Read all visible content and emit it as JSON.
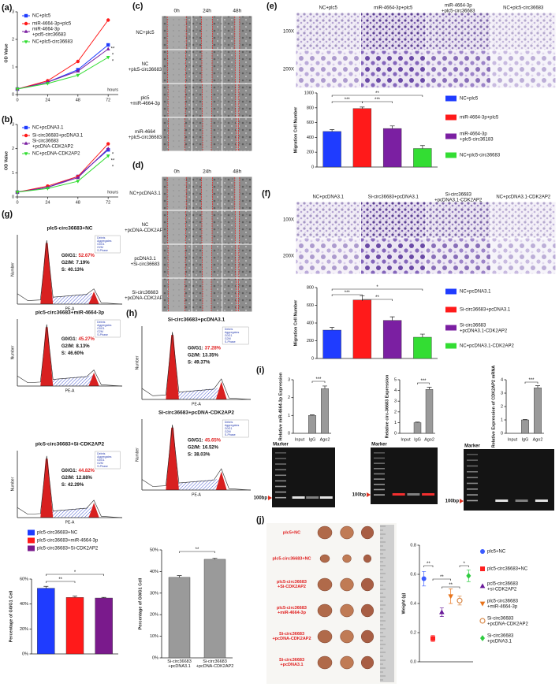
{
  "panel_labels": [
    "(a)",
    "(b)",
    "(c)",
    "(d)",
    "(e)",
    "(f)",
    "(g)",
    "(h)",
    "(i)",
    "(j)"
  ],
  "chart_data": [
    {
      "type": "line",
      "ylabel": "OD Value",
      "xlabel": "hours",
      "x": [
        0,
        24,
        48,
        72
      ],
      "xlim": [
        0,
        80
      ],
      "xticks": [
        0,
        24,
        48,
        72
      ],
      "ylim": [
        0,
        3
      ],
      "yticks": [
        0,
        1,
        2,
        3
      ],
      "series": [
        {
          "name": "NC+plc5",
          "color": "#1f3cff",
          "marker": "square",
          "values": [
            0.2,
            0.45,
            0.9,
            1.8
          ]
        },
        {
          "name": "miR-4664-3p+plc5",
          "color": "#ff1a1a",
          "marker": "circle",
          "values": [
            0.2,
            0.5,
            1.2,
            2.7
          ]
        },
        {
          "name": "miR-4664-3p\n+pcl5-circ36683",
          "color": "#7b1fa2",
          "marker": "triangle",
          "values": [
            0.2,
            0.45,
            0.85,
            1.65
          ]
        },
        {
          "name": "NC+plc5-circ36683",
          "color": "#33dd33",
          "marker": "triangle-down",
          "values": [
            0.2,
            0.4,
            0.7,
            1.35
          ]
        }
      ],
      "annotations": [
        "**",
        "*",
        "*"
      ]
    },
    {
      "type": "line",
      "ylabel": "OD Value",
      "xlabel": "hours",
      "x": [
        0,
        24,
        48,
        72
      ],
      "xlim": [
        0,
        80
      ],
      "xticks": [
        0,
        24,
        48,
        72
      ],
      "ylim": [
        0,
        3
      ],
      "yticks": [
        0,
        1,
        2,
        3
      ],
      "series": [
        {
          "name": "NC+pcDNA3.1",
          "color": "#1f3cff",
          "marker": "square",
          "values": [
            0.2,
            0.4,
            0.85,
            1.95
          ]
        },
        {
          "name": "Si-circ36683+pcDNA3.1",
          "color": "#ff1a1a",
          "marker": "circle",
          "values": [
            0.2,
            0.45,
            0.85,
            2.2
          ]
        },
        {
          "name": "Si-circ36683\n+pcDNA-CDK2AP2",
          "color": "#7b1fa2",
          "marker": "triangle",
          "values": [
            0.2,
            0.4,
            0.8,
            2.0
          ]
        },
        {
          "name": "NC+pcDNA-CDK2AP2",
          "color": "#33dd33",
          "marker": "triangle-down",
          "values": [
            0.2,
            0.35,
            0.65,
            1.7
          ]
        }
      ],
      "annotations": [
        "*",
        "**",
        "*"
      ]
    },
    {
      "type": "bar",
      "ylabel": "Migration Cell Number",
      "ylim": [
        0,
        1000
      ],
      "yticks": [
        0,
        200,
        400,
        600,
        800,
        1000
      ],
      "series": [
        {
          "name": "NC+plc5",
          "color": "#1f3cff",
          "values": [
            480
          ],
          "errors": [
            25
          ]
        },
        {
          "name": "miR-4664-3p+plc5",
          "color": "#ff1a1a",
          "values": [
            790
          ],
          "errors": [
            20
          ]
        },
        {
          "name": "miR-4664-3p\n+plc5-circ36183",
          "color": "#7b1fa2",
          "values": [
            520
          ],
          "errors": [
            35
          ]
        },
        {
          "name": "NC+plc5-circ36683",
          "color": "#33dd33",
          "values": [
            250
          ],
          "errors": [
            40
          ]
        }
      ],
      "annotations": [
        "***",
        "***",
        "**"
      ]
    },
    {
      "type": "bar",
      "ylabel": "Migration Cell Number",
      "ylim": [
        0,
        800
      ],
      "yticks": [
        0,
        200,
        400,
        600,
        800
      ],
      "series": [
        {
          "name": "NC+pcDNA3.1",
          "color": "#1f3cff",
          "values": [
            320
          ],
          "errors": [
            30
          ]
        },
        {
          "name": "Si-circ36683+pcDNA3.1",
          "color": "#ff1a1a",
          "values": [
            660
          ],
          "errors": [
            45
          ]
        },
        {
          "name": "Si-circ36683\n+pcDNA3.1-CDK2AP2",
          "color": "#7b1fa2",
          "values": [
            430
          ],
          "errors": [
            40
          ]
        },
        {
          "name": "NC+pcDNA3.1-CDK2AP2",
          "color": "#33dd33",
          "values": [
            240
          ],
          "errors": [
            35
          ]
        }
      ],
      "annotations": [
        "***",
        "**",
        "*"
      ]
    },
    {
      "type": "bar",
      "ylabel": "Percentage of G0/G1 Cell",
      "ylim": [
        0,
        60
      ],
      "yticks": [
        {
          "value": 0,
          "label": "0%"
        },
        {
          "value": 20,
          "label": "20%"
        },
        {
          "value": 40,
          "label": "40%"
        },
        {
          "value": 60,
          "label": "60%"
        }
      ],
      "series": [
        {
          "name": "plc5-circ36683+NC",
          "color": "#1f3cff",
          "values": [
            52.67
          ],
          "errors": [
            1.5
          ]
        },
        {
          "name": "plc5-circ36683+miR-4664-3p",
          "color": "#ff1a1a",
          "values": [
            45.27
          ],
          "errors": [
            1
          ]
        },
        {
          "name": "plc5-circ36683+Si-CDK2AP2",
          "color": "#7a1a8c",
          "values": [
            44.82
          ],
          "errors": [
            0.5
          ]
        }
      ],
      "annotations": [
        "**",
        "*"
      ]
    },
    {
      "type": "bar",
      "ylabel": "Percentage of G0/G1 Cell",
      "ylim": [
        0,
        50
      ],
      "yticks": [
        {
          "value": 0,
          "label": "0%"
        },
        {
          "value": 10,
          "label": "10%"
        },
        {
          "value": 20,
          "label": "20%"
        },
        {
          "value": 30,
          "label": "30%"
        },
        {
          "value": 40,
          "label": "40%"
        },
        {
          "value": 50,
          "label": "50%"
        }
      ],
      "categories": [
        "Si-circ36683\n+pcDNA3.1",
        "Si-circ36683\n+pcDNA-CDK2AP2"
      ],
      "values": [
        37.28,
        45.65
      ],
      "errors": [
        0.8,
        0.5
      ],
      "color": "#9a9a9a",
      "annotations": [
        "**"
      ]
    },
    {
      "type": "bar",
      "ylabel": "Relative miR-4664-3p Expression",
      "ylim": [
        0,
        3
      ],
      "yticks": [
        0,
        1,
        2,
        3
      ],
      "categories": [
        "Input",
        "IgG",
        "Ago2"
      ],
      "values": [
        null,
        1.0,
        2.5
      ],
      "errors": [
        null,
        0.03,
        0.15
      ],
      "color": "#9a9a9a",
      "annotations": [
        "***"
      ]
    },
    {
      "type": "bar",
      "ylabel": "Relative circ-36683 Expression",
      "ylim": [
        0,
        5
      ],
      "yticks": [
        0,
        1,
        2,
        3,
        4,
        5
      ],
      "categories": [
        "Input",
        "IgG",
        "Ago2"
      ],
      "values": [
        null,
        1.0,
        4.1
      ],
      "errors": [
        null,
        0.05,
        0.2
      ],
      "color": "#9a9a9a",
      "annotations": [
        "***"
      ]
    },
    {
      "type": "bar",
      "ylabel": "Relative Expression of CDK2AP2 mRNA",
      "ylim": [
        0,
        4
      ],
      "yticks": [
        0,
        1,
        2,
        3,
        4
      ],
      "categories": [
        "Input",
        "IgG",
        "Ago2"
      ],
      "values": [
        null,
        1.0,
        3.4
      ],
      "errors": [
        null,
        0.03,
        0.15
      ],
      "color": "#9a9a9a",
      "annotations": [
        "***"
      ]
    },
    {
      "type": "scatter",
      "ylabel": "Weight (g)",
      "ylim": [
        0,
        0.8
      ],
      "yticks": [
        {
          "value": 0,
          "label": "0.0"
        },
        0.2,
        0.4,
        0.6,
        0.8
      ],
      "series": [
        {
          "name": "plc5+NC",
          "color": "#3b5bff",
          "marker": "circle",
          "values": [
            0.57
          ],
          "errors": [
            0.05
          ]
        },
        {
          "name": "plc5-circ36683+NC",
          "color": "#ff2020",
          "marker": "square",
          "values": [
            0.16
          ],
          "errors": [
            0.02
          ]
        },
        {
          "name": "pcl5-circ36683\n+si-CDK2AP2",
          "color": "#6a1b9a",
          "marker": "triangle",
          "values": [
            0.34
          ],
          "errors": [
            0.03
          ]
        },
        {
          "name": "plc5-circ36683\n+miR-4664-3p",
          "color": "#e8731a",
          "marker": "triangle-down",
          "values": [
            0.45
          ],
          "errors": [
            0.05
          ]
        },
        {
          "name": "Si-circ36683\n+pcDNA-CDK2AP2",
          "color": "#d98a4a",
          "marker": "open-circle",
          "values": [
            0.42
          ],
          "errors": [
            0.03
          ]
        },
        {
          "name": "Si-circ36683\n+pcDNA3.1",
          "color": "#2ecc40",
          "marker": "diamond",
          "values": [
            0.59
          ],
          "errors": [
            0.04
          ]
        }
      ],
      "annotations": [
        "**",
        "**",
        "**",
        "*"
      ]
    }
  ],
  "scratch_assays": [
    {
      "times": [
        "0h",
        "24h",
        "48h"
      ],
      "groups": [
        "NC+plc5",
        "NC\n+plc5-circ36683",
        "plc5\n+miR-4664-3p",
        "miR-4664\n+plc5-circ36683"
      ]
    },
    {
      "times": [
        "0h",
        "24h",
        "48h"
      ],
      "groups": [
        "NC+pcDNA3.1",
        "NC\n+pcDNA-CDK2AP2",
        "pcDNA3.1\n+Si-circ36683",
        "Si-circ36683\n+pcDNA-CDK2AP2"
      ]
    }
  ],
  "transwell_assays": [
    {
      "magnifications": [
        "100X",
        "200X"
      ],
      "groups": [
        "NC+plc5",
        "miR-4664-3p+plc5",
        "miR-4664-3p\n+plc5-circ36683",
        "NC+plc5-circ36683"
      ]
    },
    {
      "magnifications": [
        "100X",
        "200X"
      ],
      "groups": [
        "NC+pcDNA3.1",
        "Si-circ36683+pcDNA3.1",
        "Si-circ36683\n+pcDNA3.1-CDK2AP2",
        "NC+pcDNA3.1-CDK2AP2"
      ]
    }
  ],
  "cytometry": {
    "xlabel": "PE-A",
    "ylabel": "Number",
    "legend": [
      "Debris",
      "Aggregates",
      "G0G1",
      "G2M",
      "S-Phase"
    ],
    "plots": [
      {
        "title": "plc5-circ36683+NC",
        "stats": [
          {
            "label": "G0/G1:",
            "value": "52.67%"
          },
          {
            "label": "G2/M:",
            "value": "7.19%"
          },
          {
            "label": "S:",
            "value": "40.13%"
          }
        ]
      },
      {
        "title": "plc5-circ36683+miR-4664-3p",
        "stats": [
          {
            "label": "G0/G1:",
            "value": "45.27%"
          },
          {
            "label": "G2/M:",
            "value": "8.13%"
          },
          {
            "label": "S:",
            "value": "46.60%"
          }
        ]
      },
      {
        "title": "plc5-circ36683+Si-CDK2AP2",
        "stats": [
          {
            "label": "G0/G1:",
            "value": "44.82%"
          },
          {
            "label": "G2/M:",
            "value": "12.88%"
          },
          {
            "label": "S:",
            "value": "42.29%"
          }
        ]
      },
      {
        "title": "Si-circ36683+pcDNA3.1",
        "stats": [
          {
            "label": "G0/G1:",
            "value": "37.28%"
          },
          {
            "label": "G2/M:",
            "value": "13.35%"
          },
          {
            "label": "S:",
            "value": "49.37%"
          }
        ]
      },
      {
        "title": "Si-circ36683+pcDNA-CDK2AP2",
        "stats": [
          {
            "label": "G0/G1:",
            "value": "45.65%"
          },
          {
            "label": "G2/M:",
            "value": "16.52%"
          },
          {
            "label": "S:",
            "value": "38.03%"
          }
        ]
      }
    ]
  },
  "gels": [
    {
      "marker": "Marker",
      "size": "100bp"
    },
    {
      "marker": "Marker",
      "size": "100bp"
    },
    {
      "marker": "Marker",
      "size": "100bp"
    }
  ],
  "tumor_labels": [
    "plc5+NC",
    "plc5-circ36683+NC",
    "plc5-circ36683\n+Si-CDK2AP2",
    "plc5-circ36683\n+miR-4664-3p",
    "Si-circ36683\n+pcDNA-CDK2AP2",
    "Si-circ36683\n+pcDNA3.1"
  ]
}
